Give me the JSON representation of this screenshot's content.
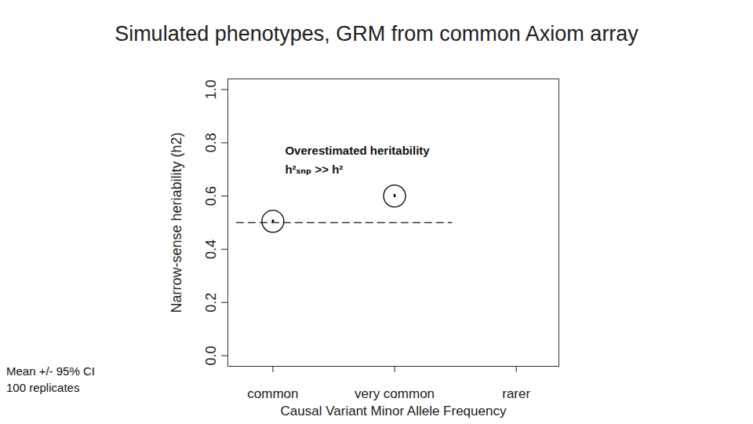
{
  "chart_data": {
    "type": "scatter",
    "title": "Simulated phenotypes, GRM from common Axiom array",
    "x_label": "Causal Variant Minor Allele Frequency",
    "y_label": "Narrow-sense heriability (h2)",
    "categories": [
      "common",
      "very common",
      "rarer"
    ],
    "values": [
      0.505,
      0.6,
      null
    ],
    "ci_low": [
      0.5,
      0.594,
      null
    ],
    "ci_high": [
      0.51,
      0.606,
      null
    ],
    "ylim": [
      -0.04,
      1.04
    ],
    "yticks": [
      {
        "value": 0,
        "label": "0.0"
      },
      {
        "value": 0.2,
        "label": "0.2"
      },
      {
        "value": 0.4,
        "label": "0.4"
      },
      {
        "value": 0.6,
        "label": "0.6"
      },
      {
        "value": 0.8,
        "label": "0.8"
      },
      {
        "value": 1,
        "label": "1.0"
      }
    ],
    "reference_line": {
      "value": 0.5,
      "line_style": "dashed"
    },
    "annotations": [
      {
        "text": "Overestimated heritability",
        "x": 0.1,
        "y": 0.768
      },
      {
        "text": "h²ₛₙₚ >> h²",
        "x": 0.1,
        "y": 0.7
      }
    ],
    "caption": [
      "Mean +/- 95% CI",
      "100 replicates"
    ],
    "marker": "circle",
    "color": "#000000"
  }
}
